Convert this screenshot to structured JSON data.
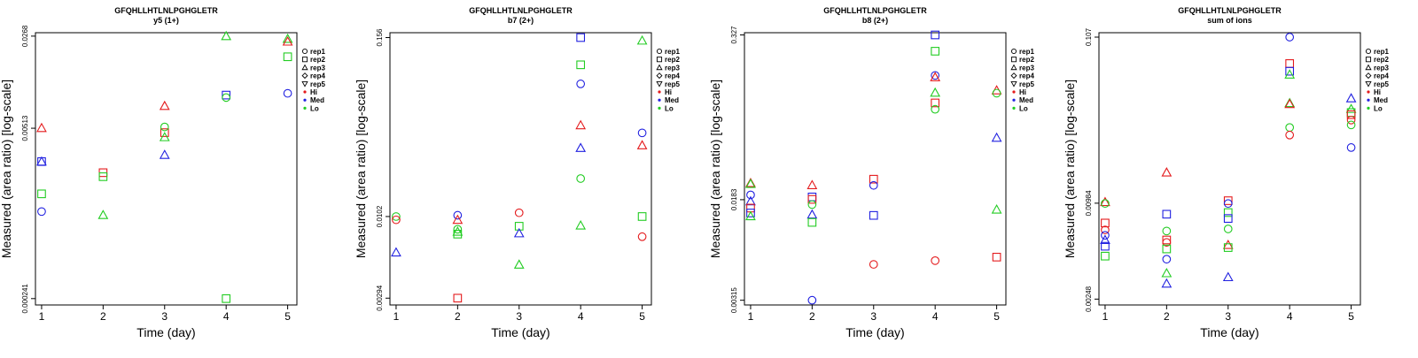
{
  "chart_data": [
    {
      "type": "scatter",
      "title": "GFQHLLHTLNLPGHGLETR",
      "subtitle": "y5 (1+)",
      "xlabel": "Time (day)",
      "ylabel": "Measured (area ratio) [log-scale]",
      "y_scale": "log",
      "x_ticks": [
        "1",
        "2",
        "3",
        "4",
        "5"
      ],
      "y_ticks": [
        {
          "value": 0.000241,
          "label": "0.000241"
        },
        {
          "value": 0.00513,
          "label": "0.00513"
        },
        {
          "value": 0.0268,
          "label": "0.0268"
        }
      ],
      "ylim": [
        0.000215,
        0.0285
      ],
      "xlim": [
        0.9,
        5.15
      ],
      "points": [
        {
          "x": 1,
          "y": 0.00515,
          "rep": "rep3",
          "group": "Hi"
        },
        {
          "x": 1,
          "y": 0.00282,
          "rep": "rep2",
          "group": "Med"
        },
        {
          "x": 1,
          "y": 0.00282,
          "rep": "rep3",
          "group": "Med"
        },
        {
          "x": 1,
          "y": 0.00158,
          "rep": "rep2",
          "group": "Lo"
        },
        {
          "x": 1,
          "y": 0.00115,
          "rep": "rep1",
          "group": "Med"
        },
        {
          "x": 2,
          "y": 0.00231,
          "rep": "rep2",
          "group": "Hi"
        },
        {
          "x": 2,
          "y": 0.00215,
          "rep": "rep2",
          "group": "Lo"
        },
        {
          "x": 2,
          "y": 0.00108,
          "rep": "rep3",
          "group": "Lo"
        },
        {
          "x": 3,
          "y": 0.00765,
          "rep": "rep3",
          "group": "Hi"
        },
        {
          "x": 3,
          "y": 0.00474,
          "rep": "rep2",
          "group": "Hi"
        },
        {
          "x": 3,
          "y": 0.00525,
          "rep": "rep1",
          "group": "Lo"
        },
        {
          "x": 3,
          "y": 0.00437,
          "rep": "rep3",
          "group": "Lo"
        },
        {
          "x": 3,
          "y": 0.00318,
          "rep": "rep3",
          "group": "Med"
        },
        {
          "x": 4,
          "y": 0.0268,
          "rep": "rep3",
          "group": "Lo"
        },
        {
          "x": 4,
          "y": 0.0093,
          "rep": "rep2",
          "group": "Med"
        },
        {
          "x": 4,
          "y": 0.0089,
          "rep": "rep1",
          "group": "Lo"
        },
        {
          "x": 4,
          "y": 0.000241,
          "rep": "rep2",
          "group": "Lo"
        },
        {
          "x": 5,
          "y": 0.0255,
          "rep": "rep3",
          "group": "Lo"
        },
        {
          "x": 5,
          "y": 0.0243,
          "rep": "rep3",
          "group": "Hi"
        },
        {
          "x": 5,
          "y": 0.0185,
          "rep": "rep2",
          "group": "Lo"
        },
        {
          "x": 5,
          "y": 0.0096,
          "rep": "rep1",
          "group": "Med"
        }
      ]
    },
    {
      "type": "scatter",
      "title": "GFQHLLHTLNLPGHGLETR",
      "subtitle": "b7 (2+)",
      "xlabel": "Time (day)",
      "ylabel": "Measured (area ratio) [log-scale]",
      "y_scale": "log",
      "x_ticks": [
        "1",
        "2",
        "3",
        "4",
        "5"
      ],
      "y_ticks": [
        {
          "value": 0.00294,
          "label": "0.00294"
        },
        {
          "value": 0.0102,
          "label": "0.0102"
        },
        {
          "value": 0.156,
          "label": "0.156"
        }
      ],
      "ylim": [
        0.00265,
        0.168
      ],
      "xlim": [
        0.9,
        5.15
      ],
      "points": [
        {
          "x": 1,
          "y": 0.0102,
          "rep": "rep1",
          "group": "Lo"
        },
        {
          "x": 1,
          "y": 0.0097,
          "rep": "rep1",
          "group": "Hi"
        },
        {
          "x": 1,
          "y": 0.0059,
          "rep": "rep3",
          "group": "Med"
        },
        {
          "x": 2,
          "y": 0.0104,
          "rep": "rep1",
          "group": "Med"
        },
        {
          "x": 2,
          "y": 0.0097,
          "rep": "rep3",
          "group": "Hi"
        },
        {
          "x": 2,
          "y": 0.0084,
          "rep": "rep1",
          "group": "Lo"
        },
        {
          "x": 2,
          "y": 0.0081,
          "rep": "rep3",
          "group": "Lo"
        },
        {
          "x": 2,
          "y": 0.0078,
          "rep": "rep2",
          "group": "Lo"
        },
        {
          "x": 2,
          "y": 0.00294,
          "rep": "rep2",
          "group": "Hi"
        },
        {
          "x": 3,
          "y": 0.0108,
          "rep": "rep1",
          "group": "Hi"
        },
        {
          "x": 3,
          "y": 0.0088,
          "rep": "rep2",
          "group": "Lo"
        },
        {
          "x": 3,
          "y": 0.0079,
          "rep": "rep3",
          "group": "Med"
        },
        {
          "x": 3,
          "y": 0.0049,
          "rep": "rep3",
          "group": "Lo"
        },
        {
          "x": 4,
          "y": 0.156,
          "rep": "rep2",
          "group": "Med"
        },
        {
          "x": 4,
          "y": 0.103,
          "rep": "rep2",
          "group": "Lo"
        },
        {
          "x": 4,
          "y": 0.077,
          "rep": "rep1",
          "group": "Med"
        },
        {
          "x": 4,
          "y": 0.041,
          "rep": "rep3",
          "group": "Hi"
        },
        {
          "x": 4,
          "y": 0.029,
          "rep": "rep3",
          "group": "Med"
        },
        {
          "x": 4,
          "y": 0.0182,
          "rep": "rep1",
          "group": "Lo"
        },
        {
          "x": 4,
          "y": 0.0089,
          "rep": "rep3",
          "group": "Lo"
        },
        {
          "x": 5,
          "y": 0.149,
          "rep": "rep3",
          "group": "Lo"
        },
        {
          "x": 5,
          "y": 0.0365,
          "rep": "rep1",
          "group": "Med"
        },
        {
          "x": 5,
          "y": 0.0302,
          "rep": "rep3",
          "group": "Hi"
        },
        {
          "x": 5,
          "y": 0.0102,
          "rep": "rep2",
          "group": "Lo"
        },
        {
          "x": 5,
          "y": 0.0075,
          "rep": "rep1",
          "group": "Hi"
        }
      ]
    },
    {
      "type": "scatter",
      "title": "GFQHLLHTLNLPGHGLETR",
      "subtitle": "b8 (2+)",
      "xlabel": "Time (day)",
      "ylabel": "Measured (area ratio) [log-scale]",
      "y_scale": "log",
      "x_ticks": [
        "1",
        "2",
        "3",
        "4",
        "5"
      ],
      "y_ticks": [
        {
          "value": 0.00315,
          "label": "0.00315"
        },
        {
          "value": 0.0183,
          "label": "0.0183"
        },
        {
          "value": 0.327,
          "label": "0.327"
        }
      ],
      "ylim": [
        0.0029,
        0.34
      ],
      "xlim": [
        0.9,
        5.15
      ],
      "points": [
        {
          "x": 1,
          "y": 0.0245,
          "rep": "rep3",
          "group": "Hi"
        },
        {
          "x": 1,
          "y": 0.0241,
          "rep": "rep3",
          "group": "Lo"
        },
        {
          "x": 1,
          "y": 0.0199,
          "rep": "rep1",
          "group": "Med"
        },
        {
          "x": 1,
          "y": 0.0178,
          "rep": "rep3",
          "group": "Med"
        },
        {
          "x": 1,
          "y": 0.0158,
          "rep": "rep2",
          "group": "Hi"
        },
        {
          "x": 1,
          "y": 0.0145,
          "rep": "rep2",
          "group": "Med"
        },
        {
          "x": 1,
          "y": 0.0137,
          "rep": "rep3",
          "group": "Lo"
        },
        {
          "x": 2,
          "y": 0.0236,
          "rep": "rep3",
          "group": "Hi"
        },
        {
          "x": 2,
          "y": 0.0192,
          "rep": "rep2",
          "group": "Med"
        },
        {
          "x": 2,
          "y": 0.0184,
          "rep": "rep2",
          "group": "Hi"
        },
        {
          "x": 2,
          "y": 0.0168,
          "rep": "rep1",
          "group": "Lo"
        },
        {
          "x": 2,
          "y": 0.0141,
          "rep": "rep3",
          "group": "Med"
        },
        {
          "x": 2,
          "y": 0.0123,
          "rep": "rep2",
          "group": "Lo"
        },
        {
          "x": 2,
          "y": 0.00315,
          "rep": "rep1",
          "group": "Med"
        },
        {
          "x": 3,
          "y": 0.0262,
          "rep": "rep2",
          "group": "Hi"
        },
        {
          "x": 3,
          "y": 0.0235,
          "rep": "rep1",
          "group": "Med"
        },
        {
          "x": 3,
          "y": 0.0139,
          "rep": "rep2",
          "group": "Med"
        },
        {
          "x": 3,
          "y": 0.0059,
          "rep": "rep1",
          "group": "Hi"
        },
        {
          "x": 4,
          "y": 0.327,
          "rep": "rep2",
          "group": "Med"
        },
        {
          "x": 4,
          "y": 0.246,
          "rep": "rep2",
          "group": "Lo"
        },
        {
          "x": 4,
          "y": 0.161,
          "rep": "rep1",
          "group": "Med"
        },
        {
          "x": 4,
          "y": 0.156,
          "rep": "rep3",
          "group": "Hi"
        },
        {
          "x": 4,
          "y": 0.119,
          "rep": "rep3",
          "group": "Lo"
        },
        {
          "x": 4,
          "y": 0.0995,
          "rep": "rep2",
          "group": "Hi"
        },
        {
          "x": 4,
          "y": 0.089,
          "rep": "rep1",
          "group": "Lo"
        },
        {
          "x": 4,
          "y": 0.0063,
          "rep": "rep1",
          "group": "Hi"
        },
        {
          "x": 5,
          "y": 0.124,
          "rep": "rep3",
          "group": "Hi"
        },
        {
          "x": 5,
          "y": 0.118,
          "rep": "rep1",
          "group": "Lo"
        },
        {
          "x": 5,
          "y": 0.0541,
          "rep": "rep3",
          "group": "Med"
        },
        {
          "x": 5,
          "y": 0.0154,
          "rep": "rep3",
          "group": "Lo"
        },
        {
          "x": 5,
          "y": 0.0067,
          "rep": "rep2",
          "group": "Hi"
        }
      ]
    },
    {
      "type": "scatter",
      "title": "GFQHLLHTLNLPGHGLETR",
      "subtitle": "sum of ions",
      "xlabel": "Time (day)",
      "ylabel": "Measured (area ratio) [log-scale]",
      "y_scale": "log",
      "x_ticks": [
        "1",
        "2",
        "3",
        "4",
        "5"
      ],
      "y_ticks": [
        {
          "value": 0.00248,
          "label": "0.00248"
        },
        {
          "value": 0.00984,
          "label": "0.00984"
        },
        {
          "value": 0.107,
          "label": "0.107"
        }
      ],
      "ylim": [
        0.00228,
        0.114
      ],
      "xlim": [
        0.9,
        5.15
      ],
      "points": [
        {
          "x": 1,
          "y": 0.01,
          "rep": "rep3",
          "group": "Hi"
        },
        {
          "x": 1,
          "y": 0.0098,
          "rep": "rep1",
          "group": "Lo"
        },
        {
          "x": 1,
          "y": 0.0074,
          "rep": "rep2",
          "group": "Hi"
        },
        {
          "x": 1,
          "y": 0.0067,
          "rep": "rep1",
          "group": "Hi"
        },
        {
          "x": 1,
          "y": 0.0062,
          "rep": "rep1",
          "group": "Med"
        },
        {
          "x": 1,
          "y": 0.0058,
          "rep": "rep3",
          "group": "Med"
        },
        {
          "x": 1,
          "y": 0.0053,
          "rep": "rep2",
          "group": "Med"
        },
        {
          "x": 1,
          "y": 0.0046,
          "rep": "rep2",
          "group": "Lo"
        },
        {
          "x": 2,
          "y": 0.0153,
          "rep": "rep3",
          "group": "Hi"
        },
        {
          "x": 2,
          "y": 0.0084,
          "rep": "rep2",
          "group": "Med"
        },
        {
          "x": 2,
          "y": 0.0066,
          "rep": "rep1",
          "group": "Lo"
        },
        {
          "x": 2,
          "y": 0.0058,
          "rep": "rep2",
          "group": "Hi"
        },
        {
          "x": 2,
          "y": 0.0056,
          "rep": "rep1",
          "group": "Hi"
        },
        {
          "x": 2,
          "y": 0.0051,
          "rep": "rep2",
          "group": "Lo"
        },
        {
          "x": 2,
          "y": 0.0044,
          "rep": "rep1",
          "group": "Med"
        },
        {
          "x": 2,
          "y": 0.0036,
          "rep": "rep3",
          "group": "Lo"
        },
        {
          "x": 2,
          "y": 0.0031,
          "rep": "rep3",
          "group": "Med"
        },
        {
          "x": 3,
          "y": 0.0102,
          "rep": "rep2",
          "group": "Hi"
        },
        {
          "x": 3,
          "y": 0.0098,
          "rep": "rep1",
          "group": "Med"
        },
        {
          "x": 3,
          "y": 0.0086,
          "rep": "rep2",
          "group": "Lo"
        },
        {
          "x": 3,
          "y": 0.0079,
          "rep": "rep2",
          "group": "Med"
        },
        {
          "x": 3,
          "y": 0.0068,
          "rep": "rep1",
          "group": "Lo"
        },
        {
          "x": 3,
          "y": 0.0054,
          "rep": "rep3",
          "group": "Hi"
        },
        {
          "x": 3,
          "y": 0.0052,
          "rep": "rep2",
          "group": "Lo"
        },
        {
          "x": 3,
          "y": 0.0034,
          "rep": "rep3",
          "group": "Med"
        },
        {
          "x": 4,
          "y": 0.107,
          "rep": "rep1",
          "group": "Med"
        },
        {
          "x": 4,
          "y": 0.0732,
          "rep": "rep2",
          "group": "Hi"
        },
        {
          "x": 4,
          "y": 0.0655,
          "rep": "rep2",
          "group": "Med"
        },
        {
          "x": 4,
          "y": 0.0625,
          "rep": "rep3",
          "group": "Lo"
        },
        {
          "x": 4,
          "y": 0.0415,
          "rep": "rep3",
          "group": "Lo"
        },
        {
          "x": 4,
          "y": 0.0409,
          "rep": "rep3",
          "group": "Hi"
        },
        {
          "x": 4,
          "y": 0.0292,
          "rep": "rep1",
          "group": "Lo"
        },
        {
          "x": 4,
          "y": 0.0262,
          "rep": "rep1",
          "group": "Hi"
        },
        {
          "x": 5,
          "y": 0.0444,
          "rep": "rep3",
          "group": "Med"
        },
        {
          "x": 5,
          "y": 0.0381,
          "rep": "rep3",
          "group": "Lo"
        },
        {
          "x": 5,
          "y": 0.0362,
          "rep": "rep2",
          "group": "Lo"
        },
        {
          "x": 5,
          "y": 0.0351,
          "rep": "rep2",
          "group": "Hi"
        },
        {
          "x": 5,
          "y": 0.0325,
          "rep": "rep1",
          "group": "Hi"
        },
        {
          "x": 5,
          "y": 0.0303,
          "rep": "rep1",
          "group": "Lo"
        },
        {
          "x": 5,
          "y": 0.0219,
          "rep": "rep1",
          "group": "Med"
        }
      ]
    }
  ],
  "legend": {
    "placement": "right",
    "shape_entries": [
      {
        "label": "rep1",
        "shape": "circle-icon"
      },
      {
        "label": "rep2",
        "shape": "square-icon"
      },
      {
        "label": "rep3",
        "shape": "triangle-up-icon"
      },
      {
        "label": "rep4",
        "shape": "diamond-icon"
      },
      {
        "label": "rep5",
        "shape": "triangle-down-icon"
      }
    ],
    "color_entries": [
      {
        "label": "Hi",
        "color": "#e41a1c"
      },
      {
        "label": "Med",
        "color": "#2020e0"
      },
      {
        "label": "Lo",
        "color": "#22cc22"
      }
    ]
  },
  "colors": {
    "Hi": "#e41a1c",
    "Med": "#2020e0",
    "Lo": "#22cc22"
  }
}
